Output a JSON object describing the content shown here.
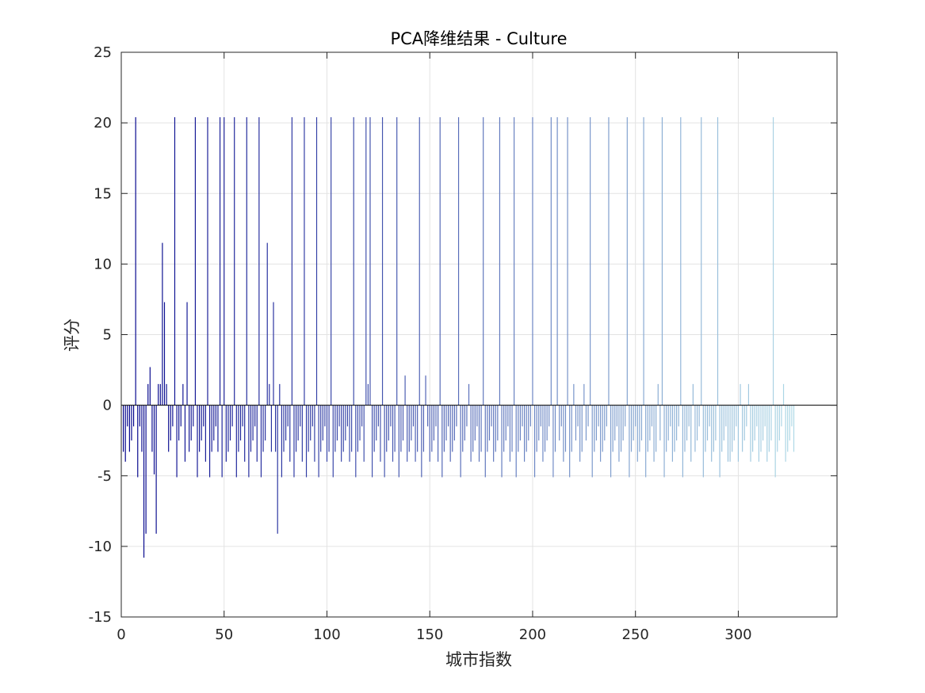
{
  "chart_data": {
    "type": "bar",
    "title": "PCA降维结果 - Culture",
    "xlabel": "城市指数",
    "ylabel": "评分",
    "xlim": [
      0,
      348
    ],
    "ylim": [
      -15,
      25
    ],
    "xticks": [
      0,
      50,
      100,
      150,
      200,
      250,
      300
    ],
    "yticks": [
      -15,
      -10,
      -5,
      0,
      5,
      10,
      15,
      20,
      25
    ],
    "grid": true,
    "color_start": "#00008b",
    "color_end": "#add8e6",
    "x_start": 1,
    "values": [
      -3.3,
      -4.0,
      -1.5,
      -3.3,
      -2.5,
      -1.5,
      20.4,
      -5.1,
      -1.5,
      -3.3,
      -10.8,
      -9.1,
      1.5,
      2.7,
      -3.3,
      -4.9,
      -9.1,
      1.5,
      1.5,
      11.5,
      7.3,
      1.5,
      -3.3,
      -2.5,
      -1.5,
      20.4,
      -5.1,
      -2.5,
      -1.5,
      1.5,
      -4.0,
      7.3,
      -3.3,
      -2.5,
      -1.5,
      20.4,
      -5.1,
      -3.3,
      -2.5,
      -1.5,
      -4.0,
      20.4,
      -5.1,
      -3.3,
      -2.5,
      -1.5,
      -3.3,
      20.4,
      -5.1,
      20.4,
      -4.0,
      -3.3,
      -2.5,
      -1.5,
      20.4,
      -5.1,
      -3.3,
      -2.5,
      -1.5,
      -4.0,
      20.4,
      -5.1,
      -3.3,
      -2.5,
      -1.5,
      -4.0,
      20.4,
      -5.1,
      -3.3,
      -2.5,
      11.5,
      1.5,
      -3.3,
      7.3,
      -3.3,
      -9.1,
      1.5,
      -5.1,
      -3.3,
      -2.5,
      -1.5,
      -4.0,
      20.4,
      -5.1,
      -3.3,
      -2.5,
      -1.5,
      -4.0,
      20.4,
      -5.1,
      -3.3,
      -2.5,
      -1.5,
      -4.0,
      20.4,
      -5.1,
      -3.3,
      -2.5,
      -1.5,
      -4.0,
      -3.3,
      20.4,
      -5.1,
      -3.3,
      -2.5,
      -1.5,
      -4.0,
      -3.3,
      -2.5,
      -1.5,
      -4.0,
      -3.3,
      20.4,
      -5.1,
      -3.3,
      -2.5,
      -1.5,
      -4.0,
      20.4,
      1.5,
      20.4,
      -5.1,
      -3.3,
      -2.5,
      -1.5,
      -4.0,
      20.4,
      -5.1,
      -3.3,
      -2.5,
      -1.5,
      -4.0,
      -3.3,
      20.4,
      -5.1,
      -3.3,
      -2.5,
      2.1,
      -4.0,
      -3.3,
      -2.5,
      -1.5,
      -4.0,
      -3.3,
      20.4,
      -5.1,
      -3.3,
      2.1,
      -1.5,
      -4.0,
      -3.3,
      -2.5,
      -1.5,
      -4.0,
      20.4,
      -5.1,
      -3.3,
      -2.5,
      -1.5,
      -4.0,
      -3.3,
      -2.5,
      -1.5,
      20.4,
      -5.1,
      -3.3,
      -2.5,
      -1.5,
      1.5,
      -4.0,
      -3.3,
      -2.5,
      -1.5,
      -4.0,
      -3.3,
      20.4,
      -5.1,
      -3.3,
      -2.5,
      -1.5,
      -4.0,
      -3.3,
      -2.5,
      20.4,
      -5.1,
      -3.3,
      -2.5,
      -1.5,
      -4.0,
      -3.3,
      20.4,
      -5.1,
      -3.3,
      -2.5,
      -1.5,
      -4.0,
      -3.3,
      -2.5,
      -1.5,
      20.4,
      -5.1,
      -3.3,
      -2.5,
      -1.5,
      -4.0,
      -3.3,
      -2.5,
      -1.5,
      20.4,
      -5.1,
      -3.3,
      20.4,
      -2.5,
      -1.5,
      -4.0,
      -3.3,
      20.4,
      -5.1,
      -3.3,
      1.5,
      -2.5,
      -1.5,
      -4.0,
      -3.3,
      1.5,
      -2.5,
      -1.5,
      20.4,
      -5.1,
      -3.3,
      -2.5,
      -1.5,
      -4.0,
      -3.3,
      -2.5,
      -1.5,
      20.4,
      -5.1,
      -3.3,
      -2.5,
      -1.5,
      -4.0,
      -3.3,
      -2.5,
      -1.5,
      20.4,
      -5.1,
      -3.3,
      -2.5,
      -1.5,
      -4.0,
      -3.3,
      -2.5,
      20.4,
      -5.1,
      -3.3,
      -2.5,
      -1.5,
      -4.0,
      -3.3,
      1.5,
      -2.5,
      20.4,
      -5.1,
      -3.3,
      -2.5,
      -1.5,
      -4.0,
      -3.3,
      -2.5,
      -1.5,
      20.4,
      -5.1,
      -3.3,
      -2.5,
      -1.5,
      -4.0,
      1.5,
      -3.3,
      -2.5,
      -1.5,
      20.4,
      -5.1,
      -3.3,
      -2.5,
      -1.5,
      -4.0,
      -3.3,
      -2.5,
      20.4,
      -5.1,
      -3.3,
      -2.5,
      -1.5,
      -4.0,
      -4.0,
      -3.3,
      -2.5,
      -1.5,
      -4.0,
      1.5,
      -3.3,
      -2.5,
      -1.5,
      1.5,
      -4.0,
      -3.3,
      -2.5,
      -1.5,
      -4.0,
      -3.3,
      -2.5,
      -1.5,
      -4.0,
      -3.3,
      -2.5,
      20.4,
      -5.1,
      -3.3,
      -2.5,
      -1.5,
      1.5,
      -4.0,
      -3.3,
      -2.5,
      -1.5,
      -3.3
    ]
  }
}
